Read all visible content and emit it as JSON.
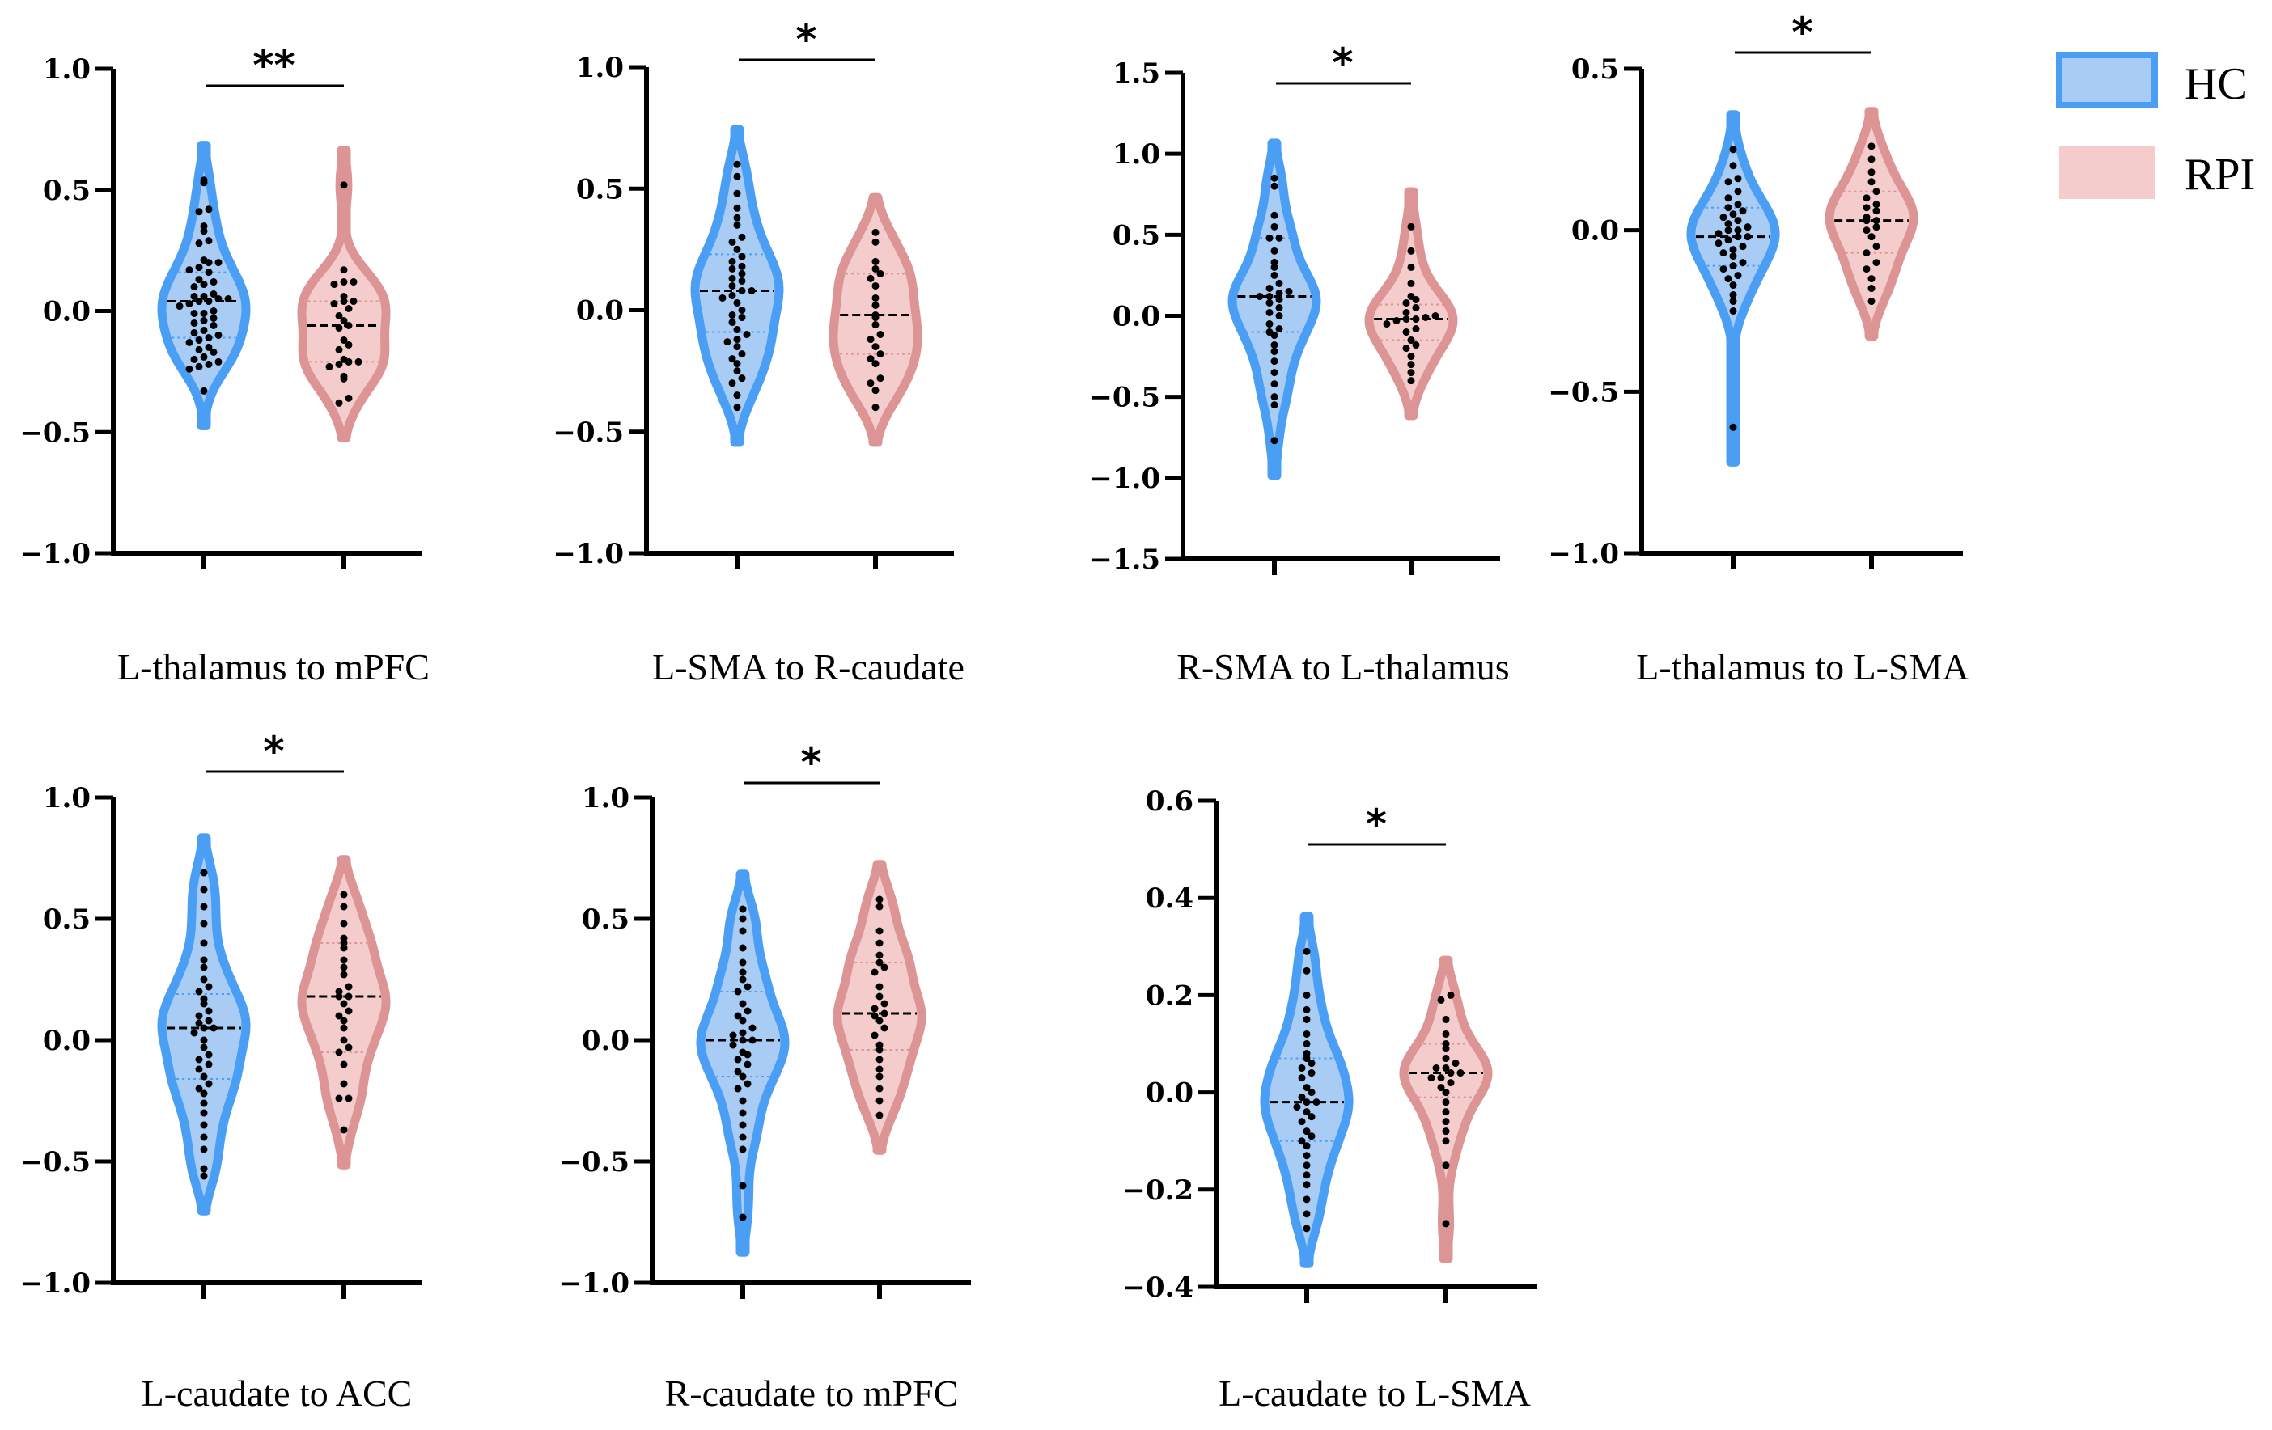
{
  "chart_data": {
    "type": "violin",
    "legend": {
      "placement": "top-right",
      "entries": [
        {
          "name": "HC",
          "stroke": "#4a9ff5",
          "fill": "#a9ccf5"
        },
        {
          "name": "RPI",
          "stroke": "#dc9494",
          "fill": "#f5cccc"
        }
      ]
    },
    "panels": [
      {
        "title": "L-thalamus to mPFC",
        "ylim": [
          -1.0,
          1.0
        ],
        "yticks": [
          -1.0,
          -0.5,
          0,
          0.5,
          1.0
        ],
        "ytick_labels": [
          "−1.0",
          "−0.5",
          "0.0",
          "0.5",
          "1.0"
        ],
        "significance": "**",
        "groups": [
          {
            "name": "HC",
            "median": 0.04,
            "q1": -0.11,
            "q3": 0.16,
            "points": [
              0.54,
              0.53,
              0.42,
              0.41,
              0.35,
              0.33,
              0.29,
              0.28,
              0.21,
              0.2,
              0.2,
              0.18,
              0.17,
              0.16,
              0.13,
              0.12,
              0.11,
              0.1,
              0.07,
              0.06,
              0.06,
              0.05,
              0.05,
              0.04,
              0.04,
              0.03,
              0.02,
              0.0,
              -0.01,
              -0.01,
              -0.03,
              -0.04,
              -0.05,
              -0.06,
              -0.08,
              -0.09,
              -0.1,
              -0.11,
              -0.12,
              -0.13,
              -0.15,
              -0.16,
              -0.17,
              -0.19,
              -0.2,
              -0.21,
              -0.22,
              -0.23,
              -0.24,
              -0.33
            ]
          },
          {
            "name": "RPI",
            "median": -0.06,
            "q1": -0.21,
            "q3": 0.04,
            "points": [
              0.52,
              0.17,
              0.12,
              0.12,
              0.11,
              0.06,
              0.04,
              0.04,
              0.03,
              0.01,
              -0.02,
              -0.04,
              -0.06,
              -0.07,
              -0.12,
              -0.14,
              -0.16,
              -0.2,
              -0.21,
              -0.21,
              -0.22,
              -0.23,
              -0.27,
              -0.28,
              -0.36,
              -0.38
            ]
          }
        ]
      },
      {
        "title": "L-SMA to R-caudate",
        "ylim": [
          -1.0,
          1.0
        ],
        "yticks": [
          -1.0,
          -0.5,
          0,
          0.5,
          1.0
        ],
        "ytick_labels": [
          "−1.0",
          "−0.5",
          "0.0",
          "0.5",
          "1.0"
        ],
        "significance": "*",
        "groups": [
          {
            "name": "HC",
            "median": 0.08,
            "q1": -0.09,
            "q3": 0.23,
            "points": [
              0.6,
              0.55,
              0.48,
              0.42,
              0.38,
              0.35,
              0.3,
              0.28,
              0.25,
              0.22,
              0.2,
              0.18,
              0.15,
              0.13,
              0.1,
              0.08,
              0.08,
              0.06,
              0.03,
              0.0,
              -0.02,
              -0.05,
              -0.08,
              -0.1,
              -0.12,
              -0.15,
              -0.18,
              -0.2,
              -0.22,
              -0.25,
              -0.28,
              -0.3,
              -0.35,
              -0.4,
              0.12,
              0.05,
              -0.03,
              0.17,
              -0.13
            ]
          },
          {
            "name": "RPI",
            "median": -0.02,
            "q1": -0.18,
            "q3": 0.15,
            "points": [
              0.32,
              0.28,
              0.2,
              0.15,
              0.13,
              0.1,
              0.05,
              0.02,
              -0.02,
              -0.03,
              -0.06,
              -0.1,
              -0.12,
              -0.18,
              -0.2,
              -0.22,
              -0.28,
              -0.3,
              -0.33,
              -0.4,
              0.17,
              -0.15
            ]
          }
        ]
      },
      {
        "title": "R-SMA to L-thalamus",
        "ylim": [
          -1.5,
          1.5
        ],
        "yticks": [
          -1.5,
          -1.0,
          -0.5,
          0,
          0.5,
          1.0,
          1.5
        ],
        "ytick_labels": [
          "−1.5",
          "−1.0",
          "−0.5",
          "0.0",
          "0.5",
          "1.0",
          "1.5"
        ],
        "significance": "*",
        "groups": [
          {
            "name": "HC",
            "median": 0.12,
            "q1": -0.1,
            "q3": 0.48,
            "points": [
              0.85,
              0.8,
              0.62,
              0.55,
              0.48,
              0.48,
              0.4,
              0.3,
              0.25,
              0.2,
              0.17,
              0.15,
              0.12,
              0.12,
              0.1,
              0.08,
              0.05,
              0.0,
              -0.05,
              -0.1,
              -0.12,
              -0.18,
              -0.22,
              -0.28,
              -0.35,
              -0.42,
              -0.5,
              -0.55,
              -0.77,
              0.14,
              0.02,
              -0.08,
              0.33
            ]
          },
          {
            "name": "RPI",
            "median": -0.02,
            "q1": -0.15,
            "q3": 0.07,
            "points": [
              0.55,
              0.4,
              0.3,
              0.2,
              0.12,
              0.08,
              0.05,
              0.02,
              0.0,
              -0.02,
              -0.02,
              -0.03,
              -0.05,
              -0.08,
              -0.1,
              -0.15,
              -0.18,
              -0.2,
              -0.25,
              -0.3,
              -0.35,
              -0.4,
              -0.01,
              0.1
            ]
          }
        ]
      },
      {
        "title": "L-thalamus to L-SMA",
        "ylim": [
          -1.0,
          0.5
        ],
        "yticks": [
          -1.0,
          -0.5,
          0,
          0.5
        ],
        "ytick_labels": [
          "−1.0",
          "−0.5",
          "0.0",
          "0.5"
        ],
        "significance": "*",
        "groups": [
          {
            "name": "HC",
            "median": -0.02,
            "q1": -0.11,
            "q3": 0.07,
            "points": [
              0.25,
              0.2,
              0.16,
              0.15,
              0.12,
              0.1,
              0.08,
              0.07,
              0.06,
              0.04,
              0.03,
              0.02,
              0.01,
              0.0,
              -0.01,
              -0.02,
              -0.02,
              -0.03,
              -0.04,
              -0.05,
              -0.06,
              -0.08,
              -0.1,
              -0.11,
              -0.12,
              -0.14,
              -0.17,
              -0.2,
              -0.22,
              -0.25,
              -0.61,
              0.05,
              -0.07,
              0.0,
              -0.15
            ]
          },
          {
            "name": "RPI",
            "median": 0.03,
            "q1": -0.07,
            "q3": 0.12,
            "points": [
              0.26,
              0.22,
              0.18,
              0.15,
              0.12,
              0.1,
              0.08,
              0.06,
              0.04,
              0.03,
              0.03,
              0.01,
              -0.02,
              -0.05,
              -0.07,
              -0.1,
              -0.12,
              -0.15,
              -0.18,
              -0.22,
              0.0,
              0.07
            ]
          }
        ]
      },
      {
        "title": "L-caudate to ACC",
        "ylim": [
          -1.0,
          1.0
        ],
        "yticks": [
          -1.0,
          -0.5,
          0,
          0.5,
          1.0
        ],
        "ytick_labels": [
          "−1.0",
          "−0.5",
          "0.0",
          "0.5",
          "1.0"
        ],
        "significance": "*",
        "groups": [
          {
            "name": "HC",
            "median": 0.05,
            "q1": -0.16,
            "q3": 0.19,
            "points": [
              0.69,
              0.62,
              0.55,
              0.48,
              0.4,
              0.33,
              0.3,
              0.25,
              0.2,
              0.17,
              0.15,
              0.12,
              0.1,
              0.08,
              0.05,
              0.05,
              0.03,
              0.0,
              -0.03,
              -0.06,
              -0.1,
              -0.12,
              -0.15,
              -0.18,
              -0.2,
              -0.22,
              -0.26,
              -0.3,
              -0.35,
              -0.4,
              -0.45,
              -0.53,
              -0.56,
              0.07,
              -0.08,
              0.22
            ]
          },
          {
            "name": "RPI",
            "median": 0.18,
            "q1": -0.05,
            "q3": 0.4,
            "points": [
              0.6,
              0.55,
              0.48,
              0.42,
              0.4,
              0.38,
              0.3,
              0.27,
              0.22,
              0.2,
              0.18,
              0.18,
              0.15,
              0.12,
              0.08,
              0.05,
              0.0,
              -0.03,
              -0.05,
              -0.1,
              -0.18,
              -0.24,
              -0.24,
              -0.37,
              0.33,
              0.1
            ]
          }
        ]
      },
      {
        "title": "R-caudate to mPFC",
        "ylim": [
          -1.0,
          1.0
        ],
        "yticks": [
          -1.0,
          -0.5,
          0,
          0.5,
          1.0
        ],
        "ytick_labels": [
          "−1.0",
          "−0.5",
          "0.0",
          "0.5",
          "1.0"
        ],
        "significance": "*",
        "groups": [
          {
            "name": "HC",
            "median": 0.0,
            "q1": -0.15,
            "q3": 0.2,
            "points": [
              0.54,
              0.5,
              0.45,
              0.38,
              0.32,
              0.28,
              0.22,
              0.2,
              0.15,
              0.12,
              0.08,
              0.05,
              0.02,
              0.0,
              0.0,
              -0.02,
              -0.05,
              -0.08,
              -0.1,
              -0.13,
              -0.15,
              -0.18,
              -0.2,
              -0.25,
              -0.3,
              -0.35,
              -0.4,
              -0.45,
              -0.6,
              -0.73,
              0.1,
              -0.06,
              0.25,
              0.03
            ]
          },
          {
            "name": "RPI",
            "median": 0.11,
            "q1": -0.04,
            "q3": 0.32,
            "points": [
              0.58,
              0.55,
              0.45,
              0.4,
              0.35,
              0.32,
              0.28,
              0.22,
              0.18,
              0.15,
              0.11,
              0.1,
              0.08,
              0.05,
              0.02,
              -0.02,
              -0.04,
              -0.08,
              -0.12,
              -0.15,
              -0.2,
              -0.25,
              -0.31,
              0.13,
              0.3
            ]
          }
        ]
      },
      {
        "title": "L-caudate to L-SMA",
        "ylim": [
          -0.4,
          0.6
        ],
        "yticks": [
          -0.4,
          -0.2,
          0,
          0.2,
          0.4,
          0.6
        ],
        "ytick_labels": [
          "−0.4",
          "−0.2",
          "0.0",
          "0.2",
          "0.4",
          "0.6"
        ],
        "significance": "*",
        "groups": [
          {
            "name": "HC",
            "median": -0.02,
            "q1": -0.1,
            "q3": 0.07,
            "points": [
              0.29,
              0.25,
              0.2,
              0.17,
              0.15,
              0.12,
              0.1,
              0.08,
              0.06,
              0.04,
              0.03,
              0.01,
              0.0,
              -0.01,
              -0.02,
              -0.02,
              -0.03,
              -0.05,
              -0.06,
              -0.08,
              -0.1,
              -0.11,
              -0.13,
              -0.15,
              -0.17,
              -0.19,
              -0.22,
              -0.25,
              -0.28,
              0.05,
              -0.04,
              0.07,
              -0.09
            ]
          },
          {
            "name": "RPI",
            "median": 0.04,
            "q1": -0.01,
            "q3": 0.1,
            "points": [
              0.2,
              0.19,
              0.15,
              0.12,
              0.1,
              0.09,
              0.07,
              0.05,
              0.05,
              0.04,
              0.04,
              0.03,
              0.03,
              0.02,
              0.01,
              0.0,
              -0.02,
              -0.04,
              -0.06,
              -0.08,
              -0.1,
              -0.15,
              -0.27,
              0.06
            ]
          }
        ]
      }
    ]
  }
}
